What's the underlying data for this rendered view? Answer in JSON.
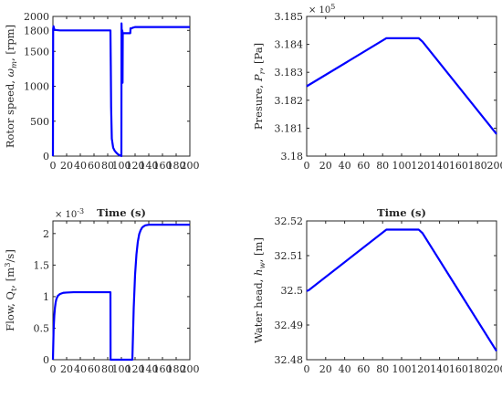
{
  "chart_data": [
    {
      "type": "line",
      "panel": "top-left",
      "xlabel": "Time (s)",
      "ylabel_parts": [
        {
          "t": "Rotor speed, "
        },
        {
          "t": "ω",
          "italic": true
        },
        {
          "t": "m",
          "sub": true,
          "italic": true
        },
        {
          "t": ", [rpm]"
        }
      ],
      "xlim": [
        0,
        200
      ],
      "ylim": [
        0,
        2000
      ],
      "xticks": [
        0,
        20,
        40,
        60,
        80,
        100,
        120,
        140,
        160,
        180,
        200
      ],
      "yticks": [
        0,
        500,
        1000,
        1500,
        1800,
        2000
      ],
      "ytick_labels": [
        "0",
        "500",
        "1000",
        "1500",
        "1800",
        "2000"
      ],
      "exponent": "",
      "series": [
        {
          "color": "#0000ff",
          "x": [
            0,
            0.3,
            0.8,
            1.5,
            2,
            5,
            10,
            20,
            40,
            60,
            80,
            84,
            84.5,
            85,
            86,
            88,
            90,
            92,
            94,
            96,
            98,
            99.5,
            100,
            100.2,
            100.4,
            101,
            101.5,
            101.7,
            102,
            105,
            110,
            113,
            113.3,
            113.6,
            115,
            116,
            117,
            118,
            119,
            120,
            130,
            150,
            170,
            200
          ],
          "y": [
            0,
            1820,
            1860,
            1830,
            1810,
            1805,
            1800,
            1800,
            1800,
            1800,
            1800,
            1800,
            1300,
            700,
            250,
            120,
            80,
            55,
            35,
            20,
            10,
            5,
            0,
            1900,
            1820,
            1800,
            1790,
            1050,
            1760,
            1760,
            1760,
            1760,
            1830,
            1830,
            1830,
            1835,
            1840,
            1842,
            1845,
            1848,
            1848,
            1848,
            1848,
            1848
          ]
        }
      ]
    },
    {
      "type": "line",
      "panel": "top-right",
      "xlabel": "Time (s)",
      "ylabel_parts": [
        {
          "t": "Presure, "
        },
        {
          "t": "P",
          "italic": true
        },
        {
          "t": "r",
          "sub": true,
          "italic": true
        },
        {
          "t": ", [Pa]"
        }
      ],
      "xlim": [
        0,
        200
      ],
      "ylim": [
        3.18,
        3.185
      ],
      "xticks": [
        0,
        20,
        40,
        60,
        80,
        100,
        120,
        140,
        160,
        180,
        200
      ],
      "yticks": [
        3.18,
        3.181,
        3.182,
        3.183,
        3.184,
        3.185
      ],
      "ytick_labels": [
        "3.18",
        "3.181",
        "3.182",
        "3.183",
        "3.184",
        "3.185"
      ],
      "exponent": "× 10^5",
      "series": [
        {
          "color": "#0000ff",
          "x": [
            0,
            84,
            118,
            122,
            200
          ],
          "y": [
            3.1825,
            3.18422,
            3.18422,
            3.1841,
            3.18079
          ]
        }
      ]
    },
    {
      "type": "line",
      "panel": "bottom-left",
      "xlabel": "Time (s)",
      "ylabel_parts": [
        {
          "t": "Flow, Q"
        },
        {
          "t": "t",
          "sub": true
        },
        {
          "t": ", [m"
        },
        {
          "t": "3",
          "sup": true
        },
        {
          "t": "/s]"
        }
      ],
      "xlim": [
        0,
        200
      ],
      "ylim": [
        0,
        0.0022
      ],
      "xticks": [
        0,
        20,
        40,
        60,
        80,
        100,
        120,
        140,
        160,
        180,
        200
      ],
      "yticks": [
        0,
        0.0005,
        0.001,
        0.0015,
        0.002
      ],
      "ytick_labels": [
        "0",
        "0.5",
        "1",
        "1.5",
        "2"
      ],
      "exponent": "× 10^-3",
      "series": [
        {
          "color": "#0000ff",
          "x": [
            0,
            1,
            2,
            3,
            4,
            5,
            7,
            10,
            15,
            20,
            30,
            50,
            70,
            83.8,
            84,
            84.2,
            100,
            115.8,
            116,
            118,
            120,
            122,
            124,
            126,
            128,
            130,
            132,
            135,
            140,
            150,
            170,
            200
          ],
          "y": [
            0,
            0.00048,
            0.0007,
            0.00083,
            0.00091,
            0.00096,
            0.00101,
            0.00104,
            0.00106,
            0.001065,
            0.00107,
            0.00107,
            0.00107,
            0.00107,
            0.00107,
            0,
            0,
            0,
            0,
            0.00082,
            0.00135,
            0.00167,
            0.00187,
            0.00199,
            0.00205,
            0.00209,
            0.00211,
            0.00213,
            0.00214,
            0.00214,
            0.00214,
            0.00214
          ]
        }
      ]
    },
    {
      "type": "line",
      "panel": "bottom-right",
      "xlabel": "Time (s)",
      "ylabel_parts": [
        {
          "t": "Water head, "
        },
        {
          "t": "h",
          "italic": true
        },
        {
          "t": "w",
          "sub": true,
          "italic": true
        },
        {
          "t": ", [m]"
        }
      ],
      "xlim": [
        0,
        200
      ],
      "ylim": [
        32.48,
        32.52
      ],
      "xticks": [
        0,
        20,
        40,
        60,
        80,
        100,
        120,
        140,
        160,
        180,
        200
      ],
      "yticks": [
        32.48,
        32.49,
        32.5,
        32.51,
        32.52
      ],
      "ytick_labels": [
        "32.48",
        "32.49",
        "32.5",
        "32.51",
        "32.52"
      ],
      "exponent": "",
      "series": [
        {
          "color": "#0000ff",
          "x": [
            0,
            2,
            84,
            118,
            122,
            200
          ],
          "y": [
            32.4998,
            32.5,
            32.5175,
            32.5175,
            32.5165,
            32.4825
          ]
        }
      ]
    }
  ]
}
